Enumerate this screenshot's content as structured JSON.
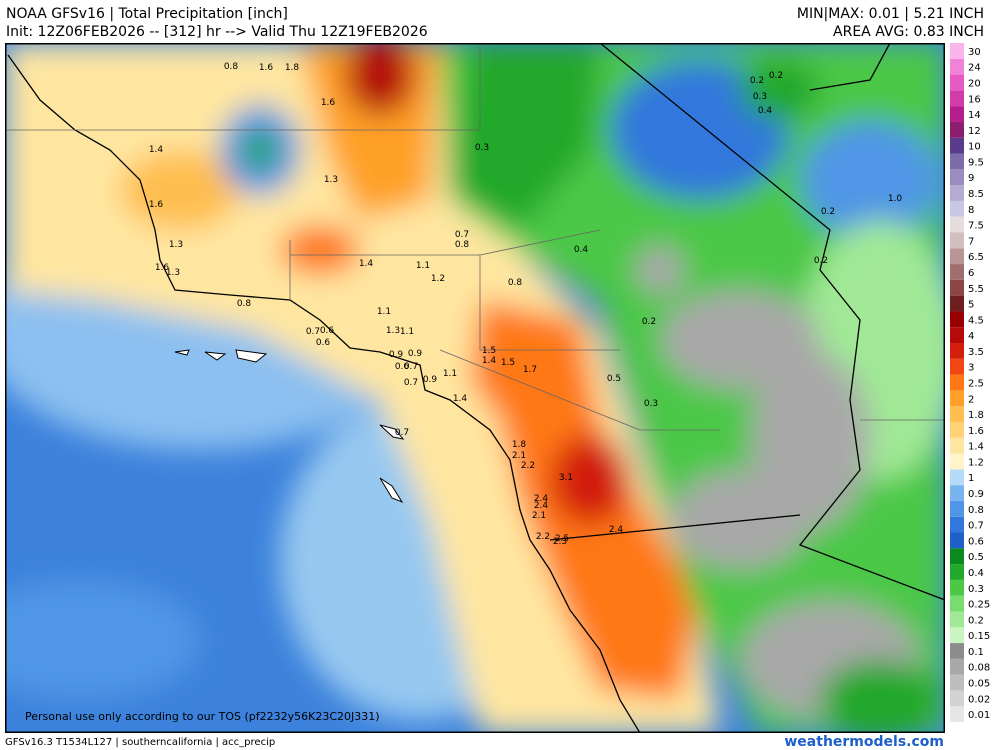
{
  "header": {
    "title": "NOAA GFSv16 | Total Precipitation [inch]",
    "subtitle": "Init: 12Z06FEB2026 -- [312] hr --> Valid Thu 12Z19FEB2026",
    "minmax": "MIN|MAX: 0.01 | 5.21 INCH",
    "area_avg": "AREA AVG: 0.83 INCH"
  },
  "footer": {
    "left": "GFSv16.3 T1534L127 | southerncalifornia | acc_precip",
    "right": "weathermodels.com",
    "notice": "Personal use only according to our TOS (pf2232y56K23C20J331)"
  },
  "colorbar": {
    "levels": [
      0.01,
      0.02,
      0.05,
      0.08,
      0.1,
      0.15,
      0.2,
      0.25,
      0.3,
      0.4,
      0.5,
      0.6,
      0.7,
      0.8,
      0.9,
      1,
      1.2,
      1.4,
      1.6,
      1.8,
      2,
      2.5,
      3,
      3.5,
      4,
      4.5,
      5,
      5.5,
      6,
      6.5,
      7,
      7.5,
      8,
      8.5,
      9,
      9.5,
      10,
      12,
      14,
      16,
      20,
      24,
      30
    ],
    "colors": [
      "#e6e6e6",
      "#d2d2d2",
      "#bebebe",
      "#a8a8a8",
      "#8c8c8c",
      "#c8f5c0",
      "#a0e896",
      "#78dc6e",
      "#4cc846",
      "#22a82a",
      "#0a8a1e",
      "#1e5fc8",
      "#3278dc",
      "#5096e6",
      "#78b4f0",
      "#b4dcfa",
      "#fff5c8",
      "#ffe6a0",
      "#ffd278",
      "#ffbe50",
      "#ffa028",
      "#ff7814",
      "#f04614",
      "#d21e0a",
      "#b40a0a",
      "#960000",
      "#6e1e1e",
      "#8c4646",
      "#a06e6e",
      "#b99696",
      "#d2bebe",
      "#e6dcdc",
      "#c8c8e6",
      "#b4aad2",
      "#9a8cc0",
      "#7c6ca8",
      "#5a3c8c",
      "#8c1e6e",
      "#b41e8c",
      "#d23ca8",
      "#e65ac3",
      "#f082d7",
      "#fab4eb"
    ]
  },
  "map_labels": [
    "0.8",
    "1.6",
    "1.8",
    "1.6",
    "1.4",
    "1.3",
    "1.6",
    "0.3",
    "0.2",
    "0.2",
    "0.3",
    "0.4",
    "1.0",
    "0.2",
    "0.7",
    "0.8",
    "0.4",
    "1.3",
    "1.6",
    "1.3",
    "1.4",
    "1.1",
    "1.2",
    "0.8",
    "0.2",
    "0.8",
    "1.1",
    "0.2",
    "0.7",
    "0.6",
    "1.3",
    "1.1",
    "0.6",
    "1.5",
    "1.4",
    "1.5",
    "1.7",
    "0.9",
    "0.9",
    "0.6",
    "0.7",
    "0.7",
    "0.9",
    "1.1",
    "1.4",
    "0.5",
    "0.3",
    "0.7",
    "1.8",
    "2.1",
    "2.2",
    "3.1",
    "2.4",
    "2.4",
    "2.1",
    "2.4",
    "2.2",
    "2.5",
    "2.3"
  ]
}
